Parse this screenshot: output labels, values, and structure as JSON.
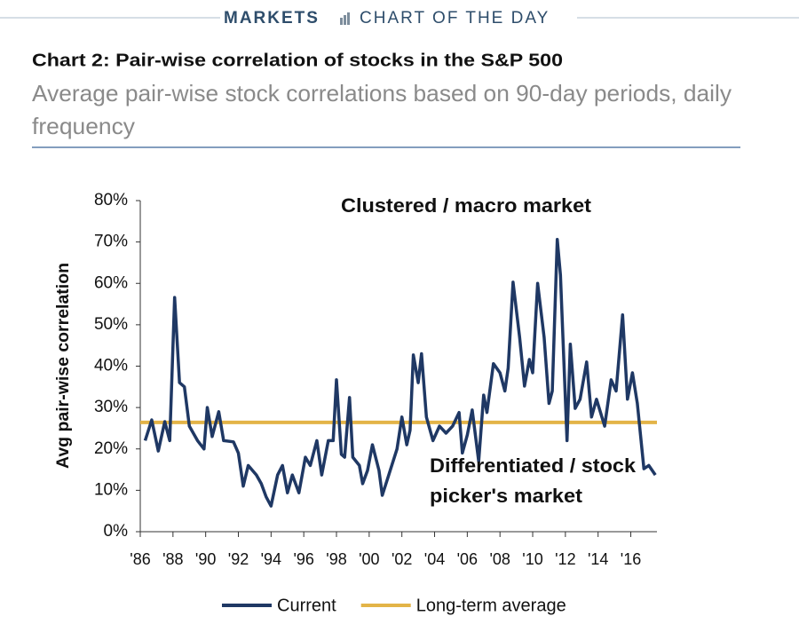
{
  "header": {
    "section": "MARKETS",
    "label": "CHART OF THE DAY"
  },
  "chart_data": {
    "type": "line",
    "title": "Chart 2: Pair-wise correlation of stocks in the S&P 500",
    "subtitle": [
      "Average pair-wise stock correlations based on 90-day periods, daily",
      "frequency"
    ],
    "ylabel": "Avg pair-wise correlation",
    "annotations": [
      "Clustered / macro market",
      "Differentiated / stock",
      "picker's market"
    ],
    "xlim": [
      1986,
      2017.6
    ],
    "xticks": [
      {
        "value": 1986,
        "label": "'86"
      },
      {
        "value": 1988,
        "label": "'88"
      },
      {
        "value": 1990,
        "label": "'90"
      },
      {
        "value": 1992,
        "label": "'92"
      },
      {
        "value": 1994,
        "label": "'94"
      },
      {
        "value": 1996,
        "label": "'96"
      },
      {
        "value": 1998,
        "label": "'98"
      },
      {
        "value": 2000,
        "label": "'00"
      },
      {
        "value": 2002,
        "label": "'02"
      },
      {
        "value": 2004,
        "label": "'04"
      },
      {
        "value": 2006,
        "label": "'06"
      },
      {
        "value": 2008,
        "label": "'08"
      },
      {
        "value": 2010,
        "label": "'10"
      },
      {
        "value": 2012,
        "label": "'12"
      },
      {
        "value": 2014,
        "label": "'14"
      },
      {
        "value": 2016,
        "label": "'16"
      }
    ],
    "ylim": [
      0,
      80
    ],
    "yticks": [
      {
        "value": 0,
        "label": "0%"
      },
      {
        "value": 10,
        "label": "10%"
      },
      {
        "value": 20,
        "label": "20%"
      },
      {
        "value": 30,
        "label": "30%"
      },
      {
        "value": 40,
        "label": "40%"
      },
      {
        "value": 50,
        "label": "50%"
      },
      {
        "value": 60,
        "label": "60%"
      },
      {
        "value": 70,
        "label": "70%"
      },
      {
        "value": 80,
        "label": "80%"
      }
    ],
    "grid": false,
    "legend": "bottom",
    "series": [
      {
        "name": "Current",
        "color": "#1f3864",
        "x": [
          1986.3,
          1986.7,
          1987.1,
          1987.5,
          1987.8,
          1988.1,
          1988.4,
          1988.7,
          1989.0,
          1989.5,
          1989.9,
          1990.1,
          1990.4,
          1990.8,
          1991.1,
          1991.7,
          1992.0,
          1992.3,
          1992.6,
          1993.1,
          1993.4,
          1993.7,
          1994.0,
          1994.4,
          1994.7,
          1995.0,
          1995.3,
          1995.7,
          1996.1,
          1996.4,
          1996.8,
          1997.1,
          1997.5,
          1997.8,
          1998.0,
          1998.3,
          1998.5,
          1998.8,
          1999.0,
          1999.4,
          1999.6,
          1999.9,
          2000.2,
          2000.6,
          2000.8,
          2001.2,
          2001.7,
          2002.0,
          2002.3,
          2002.5,
          2002.7,
          2003.0,
          2003.2,
          2003.5,
          2003.9,
          2004.3,
          2004.7,
          2005.1,
          2005.5,
          2005.7,
          2006.0,
          2006.3,
          2006.7,
          2007.0,
          2007.2,
          2007.6,
          2008.0,
          2008.3,
          2008.5,
          2008.8,
          2009.2,
          2009.5,
          2009.8,
          2010.0,
          2010.3,
          2010.7,
          2011.0,
          2011.2,
          2011.5,
          2011.7,
          2012.1,
          2012.3,
          2012.6,
          2012.9,
          2013.3,
          2013.6,
          2013.9,
          2014.4,
          2014.8,
          2015.1,
          2015.5,
          2015.8,
          2016.1,
          2016.4,
          2016.8,
          2017.1,
          2017.5
        ],
        "values": [
          22,
          27,
          19.5,
          26.6,
          22,
          56.6,
          36,
          35,
          25.5,
          22,
          20,
          30,
          23,
          29,
          22,
          21.7,
          19,
          11,
          16,
          13.7,
          11.6,
          8.4,
          6.2,
          13.7,
          16,
          9.4,
          13.7,
          9.4,
          18,
          16,
          22,
          13.7,
          22,
          22,
          36.7,
          18.7,
          18,
          32.4,
          18,
          16,
          11.6,
          14.8,
          21,
          14.8,
          8.8,
          13.7,
          20,
          27.7,
          21,
          24.5,
          42.7,
          36,
          43,
          27.7,
          22,
          25.5,
          23.8,
          25.5,
          28.8,
          19,
          23.4,
          29.4,
          17,
          33,
          28.8,
          40.6,
          38.4,
          34,
          39.5,
          60.3,
          47,
          35.2,
          41.6,
          38.4,
          60,
          47,
          31,
          34,
          70.6,
          62,
          22,
          45.3,
          29.8,
          32,
          41,
          27.7,
          32,
          25.5,
          36.7,
          34,
          52.4,
          32,
          38.4,
          31,
          15.2,
          16,
          13.7
        ]
      },
      {
        "name": "Long-term average",
        "color": "#e3b448",
        "x": [
          1986,
          2017.6
        ],
        "values": [
          26.4,
          26.4
        ]
      }
    ]
  }
}
